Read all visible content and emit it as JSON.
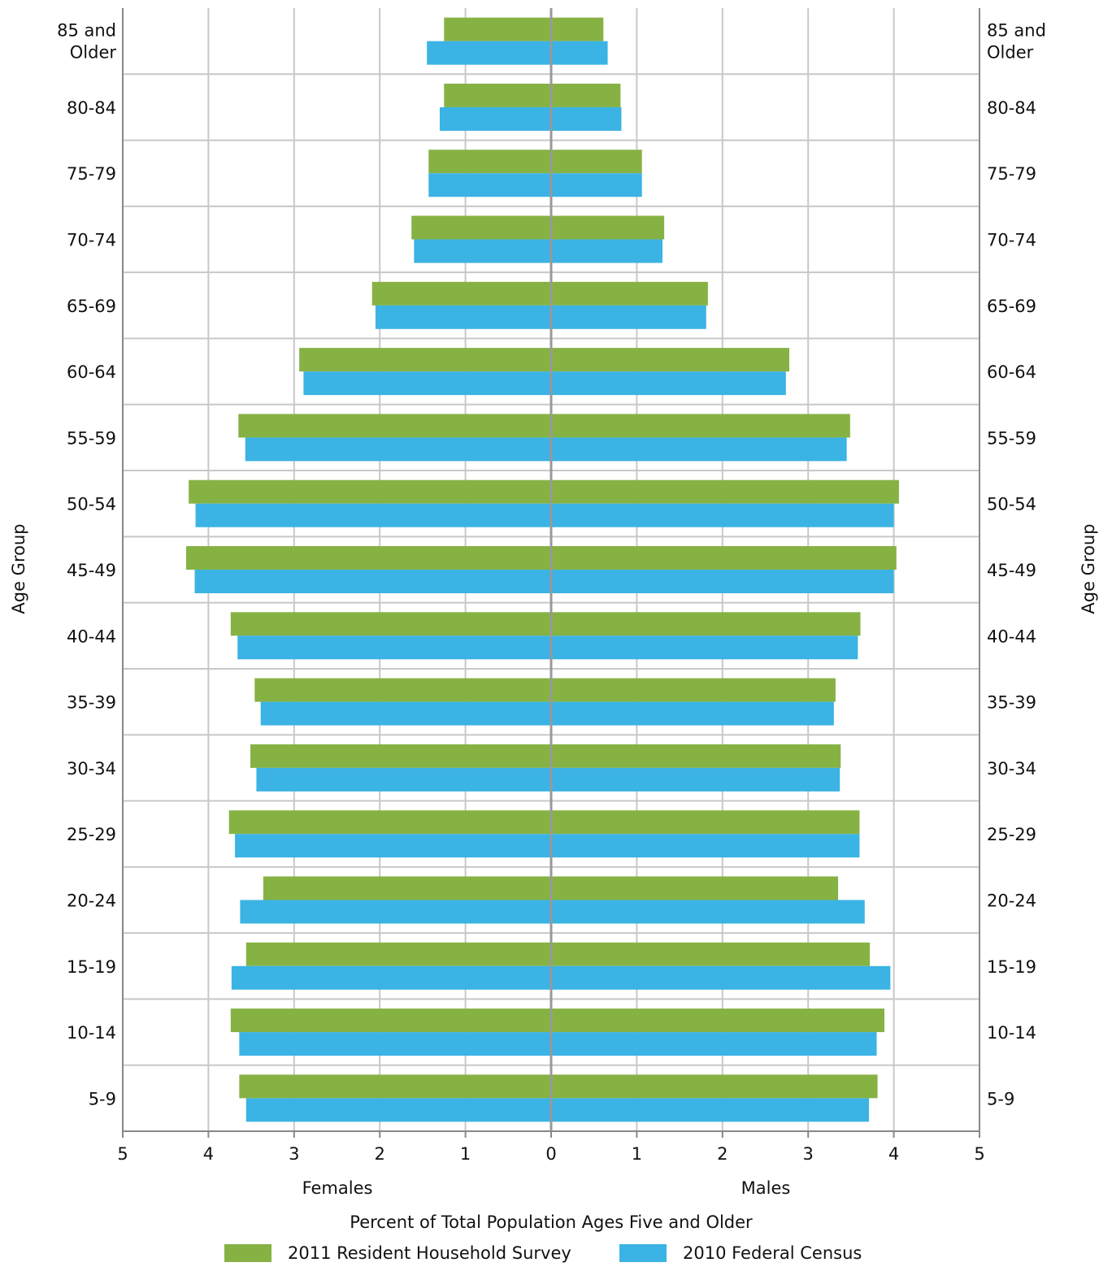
{
  "chart_data": {
    "type": "bar",
    "orientation": "horizontal",
    "layout": "population-pyramid",
    "xlabel": "Percent of Total Population Ages Five and Older",
    "ylabel": "Age Group",
    "left_side_label": "Females",
    "right_side_label": "Males",
    "xlim": [
      -5,
      5
    ],
    "x_ticks": [
      "5",
      "4",
      "3",
      "2",
      "1",
      "0",
      "1",
      "2",
      "3",
      "4",
      "5"
    ],
    "grid": true,
    "legend_position": "bottom",
    "categories": [
      "85 and Older",
      "80-84",
      "75-79",
      "70-74",
      "65-69",
      "60-64",
      "55-59",
      "50-54",
      "45-49",
      "40-44",
      "35-39",
      "30-34",
      "25-29",
      "20-24",
      "15-19",
      "10-14",
      "5-9"
    ],
    "series": [
      {
        "name": "2011 Resident Household Survey",
        "color": "#86b244",
        "females": [
          1.25,
          1.25,
          1.43,
          1.63,
          2.09,
          2.94,
          3.65,
          4.23,
          4.26,
          3.74,
          3.46,
          3.51,
          3.76,
          3.36,
          3.56,
          3.74,
          3.64
        ],
        "males": [
          0.61,
          0.81,
          1.06,
          1.32,
          1.83,
          2.78,
          3.49,
          4.06,
          4.03,
          3.61,
          3.32,
          3.38,
          3.6,
          3.35,
          3.72,
          3.89,
          3.81
        ]
      },
      {
        "name": "2010 Federal Census",
        "color": "#3bb3e4",
        "females": [
          1.45,
          1.3,
          1.43,
          1.6,
          2.05,
          2.89,
          3.57,
          4.15,
          4.16,
          3.66,
          3.39,
          3.44,
          3.69,
          3.63,
          3.73,
          3.64,
          3.56
        ],
        "males": [
          0.66,
          0.82,
          1.06,
          1.3,
          1.81,
          2.74,
          3.45,
          4.0,
          4.0,
          3.58,
          3.3,
          3.37,
          3.6,
          3.66,
          3.96,
          3.8,
          3.71
        ]
      }
    ]
  }
}
